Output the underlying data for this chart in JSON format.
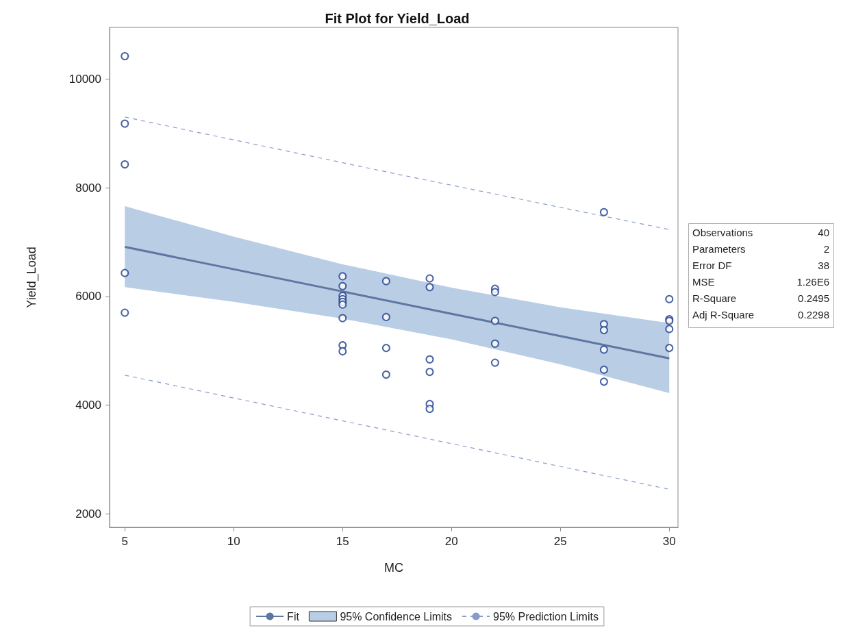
{
  "chart_data": {
    "type": "scatter",
    "title": "Fit Plot for Yield_Load",
    "xlabel": "MC",
    "ylabel": "Yield_Load",
    "xlim": [
      4.3,
      30.4
    ],
    "xticks": [
      5,
      10,
      15,
      20,
      25,
      30
    ],
    "ylim": [
      1750,
      10950
    ],
    "yticks": [
      2000,
      4000,
      6000,
      8000,
      10000
    ],
    "grid": false,
    "legend": "bottom",
    "marker": "circle",
    "series": [
      {
        "color": "#1f3f8f",
        "type": "scatter",
        "x": [
          5,
          5,
          5,
          5,
          5,
          15,
          15,
          15,
          15,
          15,
          15,
          15,
          15,
          15,
          17,
          17,
          17,
          17,
          19,
          19,
          19,
          19,
          19,
          19,
          22,
          22,
          22,
          22,
          22,
          27,
          27,
          27,
          27,
          27,
          27,
          30,
          30,
          30,
          30,
          30
        ],
        "values": [
          10420,
          9180,
          8430,
          6430,
          5700,
          6370,
          6190,
          6010,
          5950,
          5900,
          5850,
          5600,
          5100,
          4990,
          6280,
          5620,
          5050,
          4560,
          6330,
          6170,
          4840,
          4610,
          4020,
          3930,
          6140,
          6080,
          5550,
          5130,
          4780,
          7550,
          5490,
          5380,
          5020,
          4650,
          4430,
          5950,
          5580,
          5550,
          5400,
          5050
        ]
      },
      {
        "name": "Fit",
        "type": "line",
        "color": "#5f76a0",
        "line_style": "solid",
        "marker": "none",
        "x": [
          5,
          10,
          15,
          20,
          25,
          30
        ],
        "values": [
          6910,
          6500,
          6090,
          5680,
          5270,
          4860
        ],
        "lower": [
          6170,
          5900,
          5590,
          5210,
          4750,
          4220
        ],
        "upper": [
          7660,
          7100,
          6590,
          6160,
          5800,
          5510
        ]
      },
      {
        "name": "95% Confidence Limits",
        "type": "area",
        "color": "#b9cde5",
        "marker": "none"
      },
      {
        "name": "95% Prediction Limits",
        "type": "line",
        "color": "#8a9bc8",
        "line_style": "dashed",
        "marker": "none",
        "x": [
          5,
          17.5,
          30
        ],
        "values": [
          9300,
          8250,
          7230
        ]
      },
      {
        "type": "line",
        "color": "#8a9bc8",
        "line_style": "dashed",
        "marker": "none",
        "x": [
          5,
          17.5,
          30
        ],
        "values": [
          4550,
          3500,
          2450
        ]
      }
    ],
    "annotations": [
      "Observations 40",
      "Parameters 2",
      "Error DF 38",
      "MSE 1.26E6",
      "R-Square 0.2495",
      "Adj R-Square 0.2298"
    ]
  }
}
